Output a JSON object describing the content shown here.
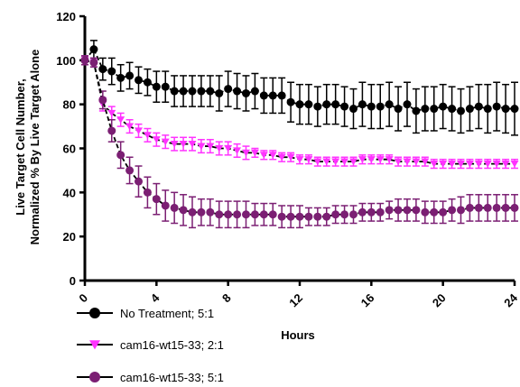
{
  "chart_data": {
    "type": "line",
    "xlabel": "Hours",
    "ylabel_lines": [
      "Live Target Cell Number,",
      "Normalized % By Live Target Alone"
    ],
    "xlim": [
      0,
      24
    ],
    "ylim": [
      0,
      120
    ],
    "xticks": [
      "0",
      "4",
      "8",
      "12",
      "16",
      "20",
      "24"
    ],
    "yticks": [
      "0",
      "20",
      "40",
      "60",
      "80",
      "100",
      "120"
    ],
    "grid": false,
    "legend_position": "bottom-left",
    "series": [
      {
        "name": "No Treatment; 5:1",
        "color": "#000000",
        "marker": "circle",
        "x": [
          0,
          0.5,
          1,
          1.5,
          2,
          2.5,
          3,
          3.5,
          4,
          4.5,
          5,
          5.5,
          6,
          6.5,
          7,
          7.5,
          8,
          8.5,
          9,
          9.5,
          10,
          10.5,
          11,
          11.5,
          12,
          12.5,
          13,
          13.5,
          14,
          14.5,
          15,
          15.5,
          16,
          16.5,
          17,
          17.5,
          18,
          18.5,
          19,
          19.5,
          20,
          20.5,
          21,
          21.5,
          22,
          22.5,
          23,
          23.5,
          24
        ],
        "y": [
          100,
          105,
          96,
          95,
          92,
          93,
          91,
          90,
          88,
          88,
          86,
          86,
          86,
          86,
          86,
          85,
          87,
          86,
          85,
          86,
          84,
          84,
          84,
          81,
          80,
          80,
          79,
          80,
          80,
          79,
          78,
          80,
          79,
          79,
          80,
          78,
          80,
          77,
          78,
          78,
          79,
          78,
          77,
          78,
          79,
          78,
          79,
          78,
          78
        ],
        "err": [
          2,
          4,
          5,
          6,
          6,
          6,
          6,
          6,
          7,
          7,
          7,
          7,
          7,
          7,
          7,
          8,
          8,
          8,
          8,
          8,
          8,
          8,
          8,
          9,
          9,
          9,
          9,
          9,
          9,
          9,
          9,
          10,
          10,
          10,
          10,
          10,
          10,
          10,
          10,
          10,
          10,
          10,
          10,
          10,
          10,
          11,
          11,
          11,
          12
        ]
      },
      {
        "name": "cam16-wt15-33; 2:1",
        "color": "#ff33ff",
        "marker": "triangle-down",
        "x": [
          0,
          0.5,
          1,
          1.5,
          2,
          2.5,
          3,
          3.5,
          4,
          4.5,
          5,
          5.5,
          6,
          6.5,
          7,
          7.5,
          8,
          8.5,
          9,
          9.5,
          10,
          10.5,
          11,
          11.5,
          12,
          12.5,
          13,
          13.5,
          14,
          14.5,
          15,
          15.5,
          16,
          16.5,
          17,
          17.5,
          18,
          18.5,
          19,
          19.5,
          20,
          20.5,
          21,
          21.5,
          22,
          22.5,
          23,
          23.5,
          24
        ],
        "y": [
          100,
          99,
          80,
          76,
          73,
          70,
          68,
          66,
          64,
          63,
          62,
          62,
          62,
          61,
          61,
          60,
          60,
          59,
          58,
          58,
          57,
          57,
          56,
          56,
          55,
          55,
          54,
          54,
          54,
          54,
          54,
          55,
          55,
          55,
          55,
          54,
          54,
          54,
          54,
          53,
          53,
          53,
          53,
          53,
          53,
          53,
          53,
          53,
          53
        ],
        "err": [
          2,
          2,
          3,
          3,
          3,
          3,
          3,
          3,
          3,
          3,
          3,
          3,
          3,
          3,
          3,
          3,
          3,
          3,
          3,
          2,
          2,
          2,
          2,
          2,
          2,
          2,
          2,
          2,
          2,
          2,
          2,
          2,
          2,
          2,
          2,
          2,
          2,
          2,
          2,
          2,
          2,
          2,
          2,
          2,
          2,
          2,
          2,
          2,
          2
        ]
      },
      {
        "name": "cam16-wt15-33; 5:1",
        "color": "#7b1f73",
        "marker": "circle",
        "x": [
          0,
          0.5,
          1,
          1.5,
          2,
          2.5,
          3,
          3.5,
          4,
          4.5,
          5,
          5.5,
          6,
          6.5,
          7,
          7.5,
          8,
          8.5,
          9,
          9.5,
          10,
          10.5,
          11,
          11.5,
          12,
          12.5,
          13,
          13.5,
          14,
          14.5,
          15,
          15.5,
          16,
          16.5,
          17,
          17.5,
          18,
          18.5,
          19,
          19.5,
          20,
          20.5,
          21,
          21.5,
          22,
          22.5,
          23,
          23.5,
          24
        ],
        "y": [
          100,
          99,
          82,
          68,
          57,
          50,
          45,
          40,
          37,
          34,
          33,
          32,
          31,
          31,
          31,
          30,
          30,
          30,
          30,
          30,
          30,
          30,
          29,
          29,
          29,
          29,
          29,
          29,
          30,
          30,
          30,
          31,
          31,
          31,
          32,
          32,
          32,
          32,
          31,
          31,
          31,
          32,
          32,
          33,
          33,
          33,
          33,
          33,
          33
        ],
        "err": [
          2,
          2,
          4,
          5,
          6,
          6,
          7,
          7,
          7,
          7,
          7,
          7,
          7,
          6,
          6,
          6,
          6,
          6,
          6,
          5,
          5,
          5,
          5,
          5,
          5,
          4,
          4,
          4,
          4,
          4,
          4,
          4,
          4,
          4,
          4,
          5,
          5,
          5,
          5,
          5,
          5,
          5,
          6,
          6,
          6,
          6,
          6,
          6,
          6
        ]
      }
    ]
  }
}
